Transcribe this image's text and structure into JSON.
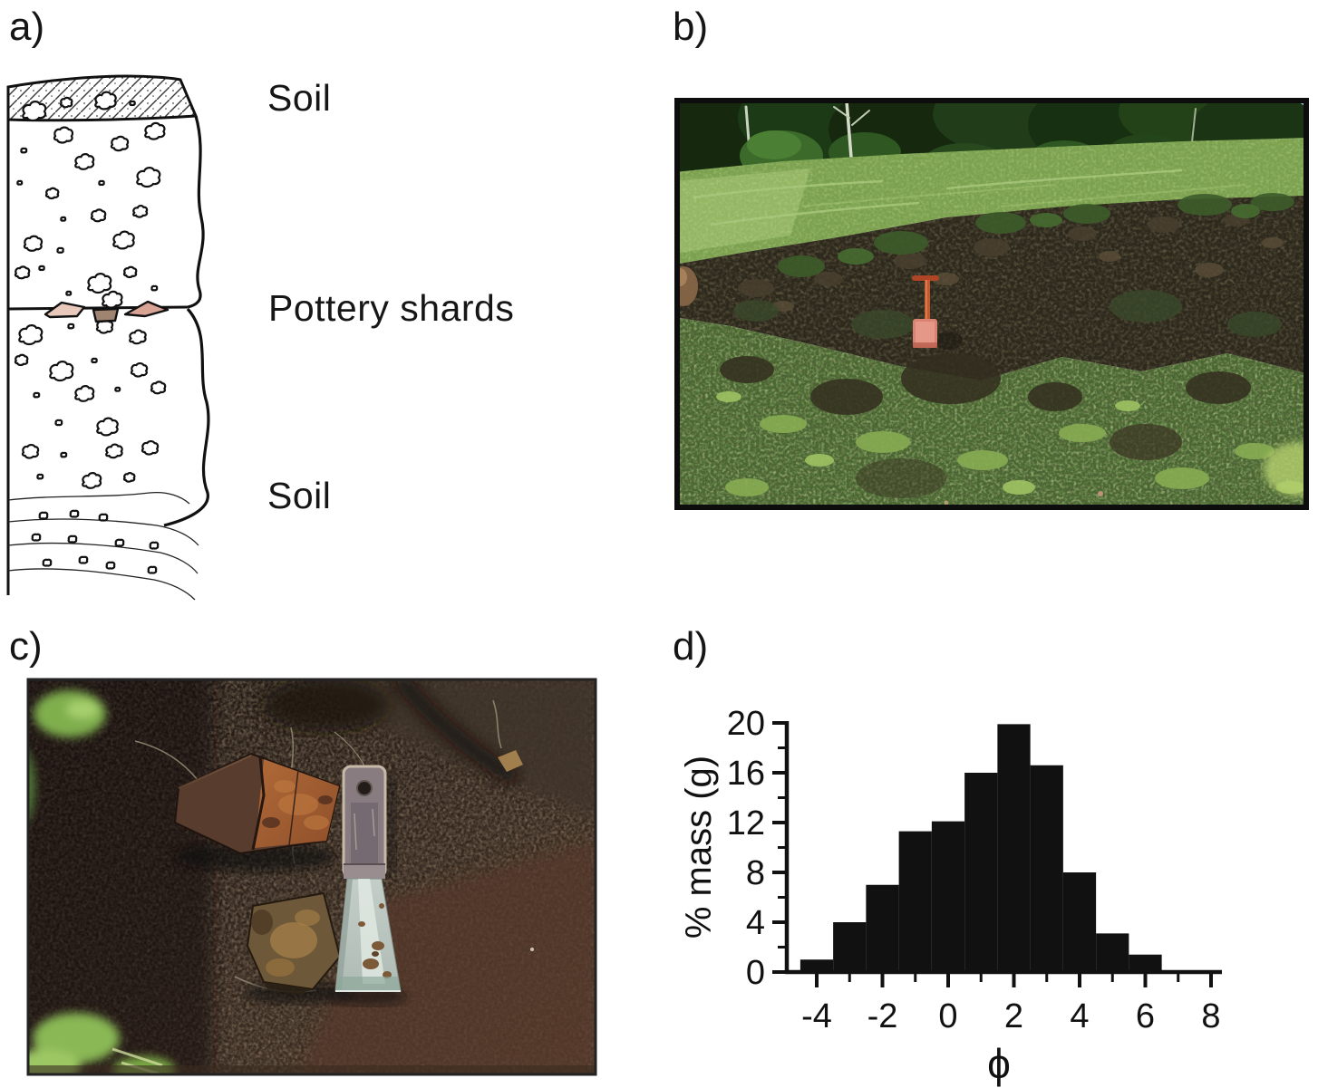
{
  "panels": {
    "a": {
      "letter": "a)",
      "layers": [
        "Soil",
        "Pottery shards",
        "Soil"
      ],
      "shard_colors": {
        "left": "#e9c9bb",
        "middle": "#a08472",
        "right": "#d9a496"
      }
    },
    "b": {
      "letter": "b)",
      "description": "Grassy hillslope with exposed dark soil scarp; red shovel for scale"
    },
    "c": {
      "letter": "c)",
      "description": "Pottery shards in dark soil beside a putty knife for scale"
    },
    "d": {
      "letter": "d)"
    }
  },
  "chart_data": {
    "type": "bar",
    "title": "",
    "xlabel": "ϕ",
    "ylabel": "% mass (g)",
    "x_centers": [
      -4,
      -3,
      -2,
      -1,
      0,
      1,
      2,
      3,
      4,
      5,
      6
    ],
    "values": [
      1,
      4,
      7,
      11.3,
      12.1,
      16,
      19.9,
      16.6,
      8,
      3.1,
      1.4
    ],
    "bar_width": 1,
    "xlim": [
      -4.9,
      8.3
    ],
    "ylim": [
      0,
      20
    ],
    "x_major_ticks": [
      -4,
      -2,
      0,
      2,
      4,
      6,
      8
    ],
    "x_minor_ticks": [
      -3,
      -1,
      1,
      3,
      5,
      7
    ],
    "y_major_ticks": [
      0,
      4,
      8,
      12,
      16,
      20
    ],
    "y_minor_ticks": [
      2,
      6,
      10,
      14,
      18
    ],
    "bar_color": "#111111",
    "axis_color": "#111111",
    "grid": false,
    "legend": null
  }
}
